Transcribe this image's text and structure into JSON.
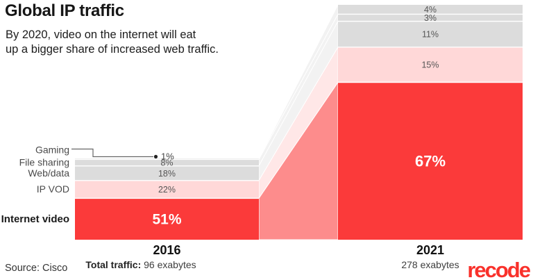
{
  "header": {
    "title": "Global IP traffic",
    "subtitle_line1": "By 2020, video on the internet will eat",
    "subtitle_line2": "up a bigger share of increased web traffic."
  },
  "footer": {
    "source": "Source: Cisco",
    "total_label": "Total traffic:",
    "brand": "recode",
    "brand_color": "#f9312b"
  },
  "chart_data": {
    "type": "bar",
    "subtype": "stacked-percentage-columns-with-slope-bands",
    "title": "Global IP traffic",
    "unit": "% of total IP traffic",
    "categories": [
      "Gaming",
      "File sharing",
      "Web/data",
      "IP VOD",
      "Internet video"
    ],
    "series": [
      {
        "name": "2016",
        "total_exabytes": 96,
        "total_label": "96 exabytes",
        "values_pct": [
          1,
          8,
          18,
          22,
          51
        ]
      },
      {
        "name": "2021",
        "total_exabytes": 278,
        "total_label": "278 exabytes",
        "values_pct": [
          4,
          3,
          11,
          15,
          67
        ]
      }
    ],
    "segment_colors": [
      "#dcdcdc",
      "#dcdcdc",
      "#dcdcdc",
      "#ffd8d8",
      "#fb3a3a"
    ],
    "connector_colors": [
      "#f2f2f2",
      "#f2f2f2",
      "#f2f2f2",
      "#ffe7e7",
      "#fd8c8c"
    ],
    "value_label_color": "#555555",
    "category_label_color": "#4a4a4a",
    "highlight_text_color": "#ffffff",
    "bar_heights_proportional_to_total": true,
    "legend_position": "left-category-labels"
  }
}
